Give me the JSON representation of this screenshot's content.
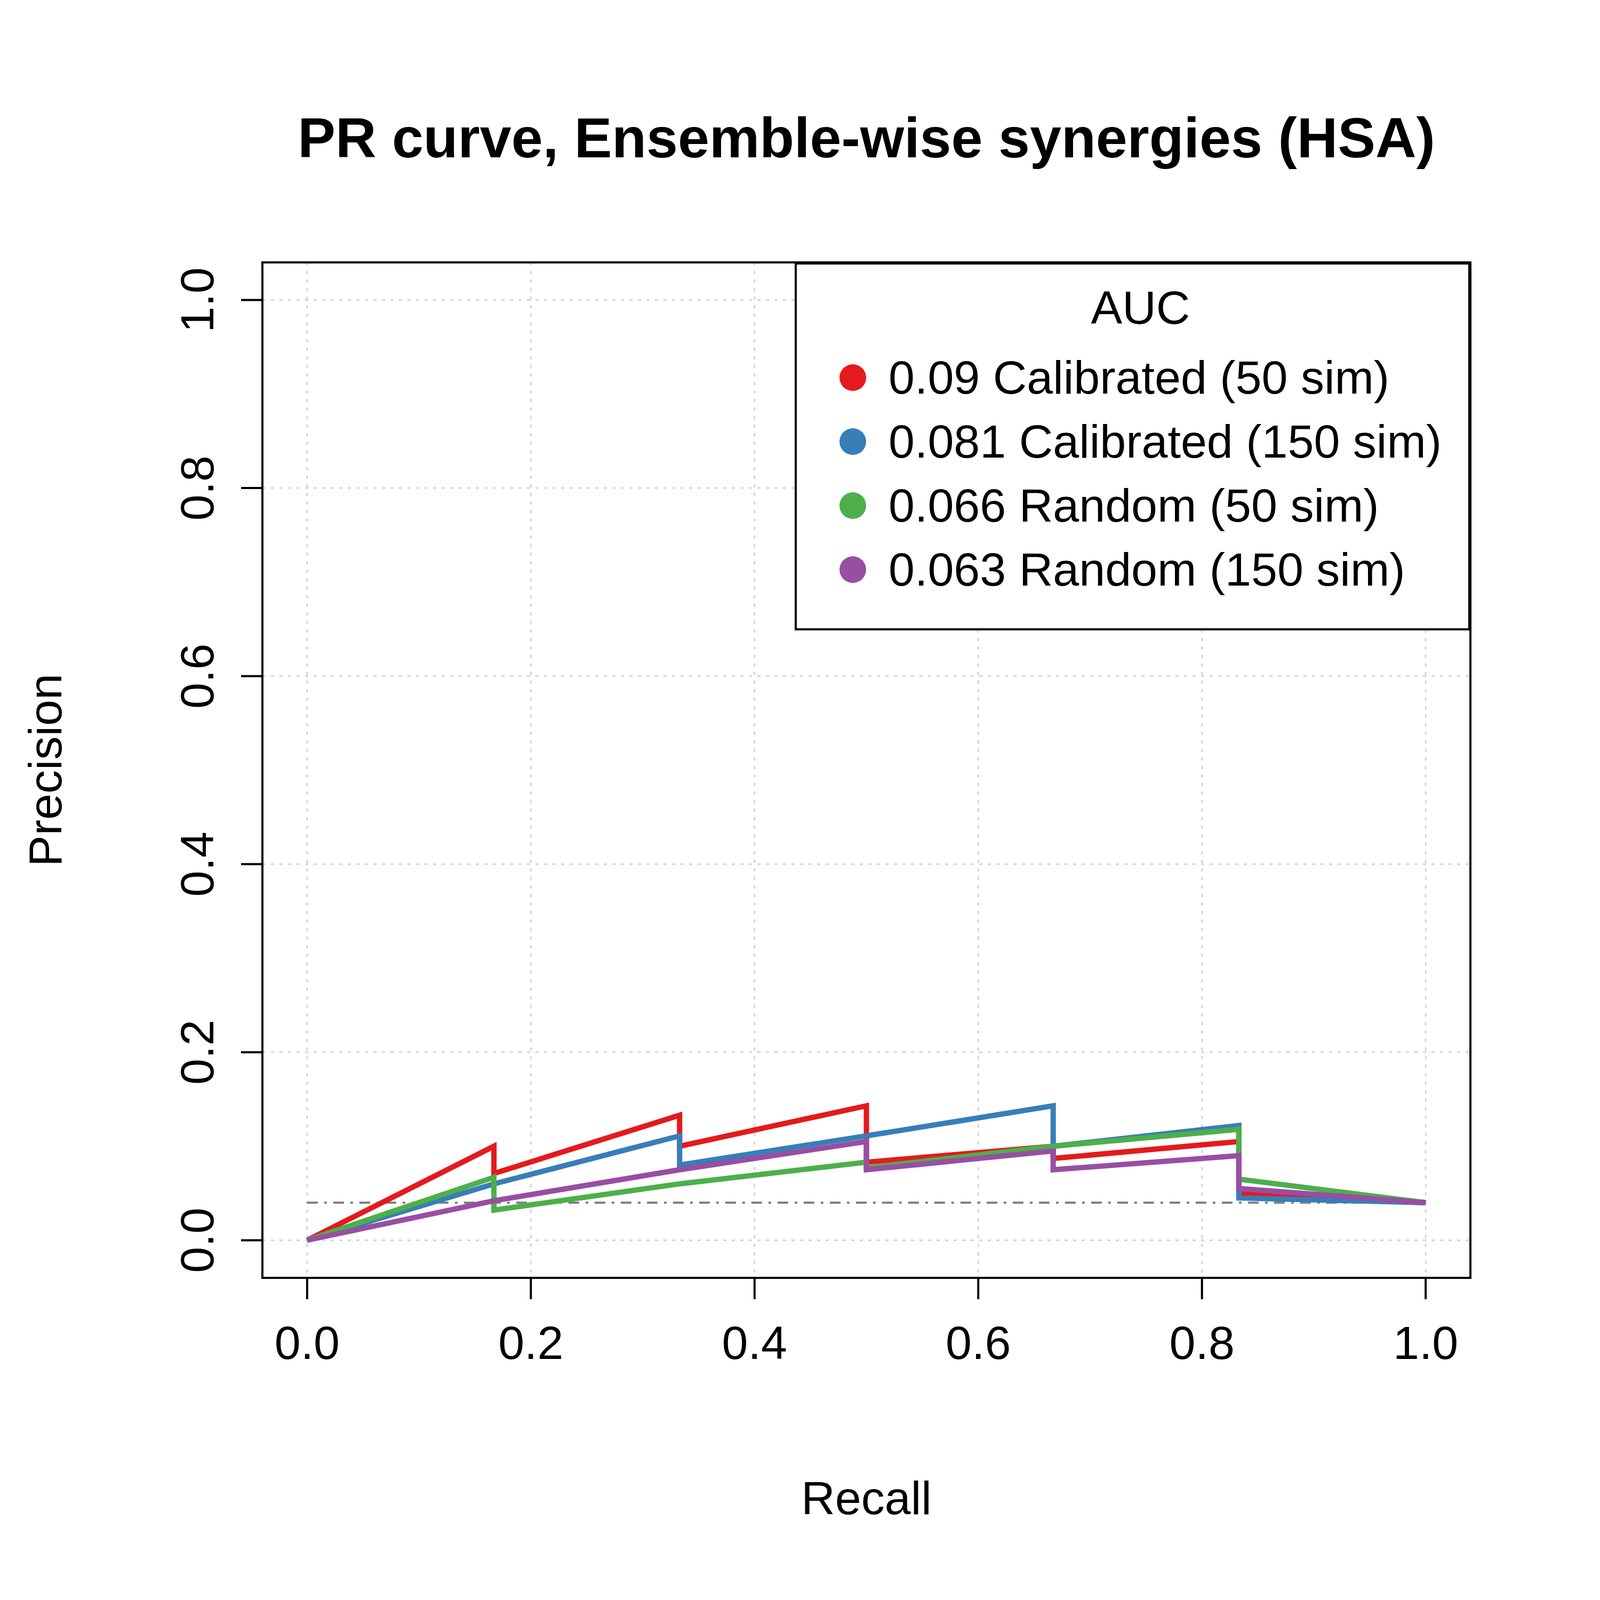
{
  "chart_data": {
    "type": "line",
    "title": "PR curve, Ensemble-wise synergies (HSA)",
    "x_label": "Recall",
    "y_label": "Precision",
    "legend_title": "AUC",
    "legend": "top-right",
    "grid": true,
    "xlim": [
      -0.04,
      1.04
    ],
    "ylim": [
      -0.04,
      1.04
    ],
    "xticks": [
      {
        "value": 0,
        "label": "0.0"
      },
      {
        "value": 0.2,
        "label": "0.2"
      },
      {
        "value": 0.4,
        "label": "0.4"
      },
      {
        "value": 0.6,
        "label": "0.6"
      },
      {
        "value": 0.8,
        "label": "0.8"
      },
      {
        "value": 1,
        "label": "1.0"
      }
    ],
    "yticks": [
      {
        "value": 0,
        "label": "0.0"
      },
      {
        "value": 0.2,
        "label": "0.2"
      },
      {
        "value": 0.4,
        "label": "0.4"
      },
      {
        "value": 0.6,
        "label": "0.6"
      },
      {
        "value": 0.8,
        "label": "0.8"
      },
      {
        "value": 1,
        "label": "1.0"
      }
    ],
    "baseline": 0.04,
    "series": [
      {
        "name": "0.09 Calibrated (50 sim)",
        "color": "#E41A1C",
        "x": [
          0,
          0.167,
          0.167,
          0.333,
          0.333,
          0.5,
          0.5,
          0.667,
          0.667,
          0.833,
          0.833,
          1
        ],
        "values": [
          0,
          0.1,
          0.071,
          0.133,
          0.1,
          0.143,
          0.083,
          0.1,
          0.087,
          0.105,
          0.05,
          0.04
        ]
      },
      {
        "name": "0.081 Calibrated (150 sim)",
        "color": "#377EB8",
        "x": [
          0,
          0.167,
          0.333,
          0.333,
          0.5,
          0.667,
          0.667,
          0.833,
          0.833,
          1
        ],
        "values": [
          0,
          0.06,
          0.111,
          0.08,
          0.111,
          0.143,
          0.1,
          0.122,
          0.045,
          0.04
        ]
      },
      {
        "name": "0.066 Random (50 sim)",
        "color": "#4DAF4A",
        "x": [
          0,
          0.167,
          0.167,
          0.333,
          0.5,
          0.5,
          0.667,
          0.833,
          0.833,
          1
        ],
        "values": [
          0,
          0.067,
          0.032,
          0.06,
          0.083,
          0.077,
          0.1,
          0.118,
          0.065,
          0.04
        ]
      },
      {
        "name": "0.063 Random (150 sim)",
        "color": "#984EA3",
        "x": [
          0,
          0.167,
          0.333,
          0.5,
          0.5,
          0.667,
          0.667,
          0.833,
          0.833,
          1
        ],
        "values": [
          0,
          0.042,
          0.075,
          0.105,
          0.075,
          0.095,
          0.075,
          0.09,
          0.055,
          0.04
        ]
      }
    ]
  }
}
